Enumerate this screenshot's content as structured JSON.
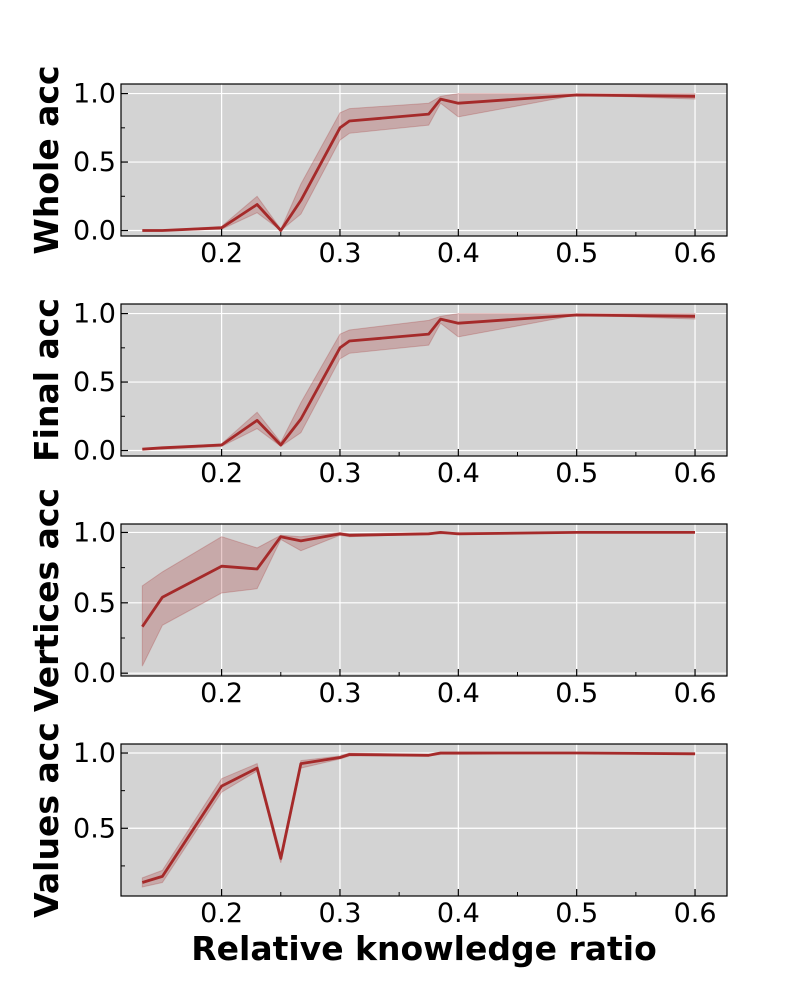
{
  "figure": {
    "xlabel": "Relative knowledge ratio"
  },
  "style": {
    "panel_bg": "#d3d3d3",
    "grid_color": "#ffffff",
    "line_color": "#a52a2a",
    "band_color": "#a52a2a"
  },
  "chart_data": [
    {
      "type": "line",
      "ylabel": "Whole acc",
      "xlim": [
        0.115,
        0.627
      ],
      "ylim": [
        -0.04,
        1.07
      ],
      "xticks": [
        "0.2",
        "0.3",
        "0.4",
        "0.5",
        "0.6"
      ],
      "xtick_values": [
        0.2,
        0.3,
        0.4,
        0.5,
        0.6
      ],
      "xminor_values": [
        0.25,
        0.35,
        0.45,
        0.55
      ],
      "yticks": [
        "0.0",
        "0.5",
        "1.0"
      ],
      "ytick_values": [
        0.0,
        0.5,
        1.0
      ],
      "yminor_values": [
        0.25,
        0.75
      ],
      "grid": true,
      "series": [
        {
          "x": [
            0.133,
            0.15,
            0.2,
            0.23,
            0.25,
            0.267,
            0.3,
            0.308,
            0.375,
            0.385,
            0.4,
            0.5,
            0.6
          ],
          "y": [
            0.0,
            0.0,
            0.02,
            0.19,
            0.0,
            0.22,
            0.75,
            0.8,
            0.85,
            0.96,
            0.93,
            0.99,
            0.98
          ],
          "lower": [
            0.0,
            0.0,
            0.01,
            0.13,
            0.0,
            0.12,
            0.66,
            0.71,
            0.77,
            0.93,
            0.83,
            0.99,
            0.96
          ],
          "upper": [
            0.0,
            0.0,
            0.03,
            0.25,
            0.01,
            0.34,
            0.86,
            0.89,
            0.93,
            0.98,
            1.0,
            1.0,
            1.0
          ]
        }
      ]
    },
    {
      "type": "line",
      "ylabel": "Final acc",
      "xlim": [
        0.115,
        0.627
      ],
      "ylim": [
        -0.04,
        1.07
      ],
      "xticks": [
        "0.2",
        "0.3",
        "0.4",
        "0.5",
        "0.6"
      ],
      "xtick_values": [
        0.2,
        0.3,
        0.4,
        0.5,
        0.6
      ],
      "xminor_values": [
        0.25,
        0.35,
        0.45,
        0.55
      ],
      "yticks": [
        "0.0",
        "0.5",
        "1.0"
      ],
      "ytick_values": [
        0.0,
        0.5,
        1.0
      ],
      "yminor_values": [
        0.25,
        0.75
      ],
      "grid": true,
      "series": [
        {
          "x": [
            0.133,
            0.15,
            0.2,
            0.23,
            0.25,
            0.267,
            0.3,
            0.308,
            0.375,
            0.385,
            0.4,
            0.5,
            0.6
          ],
          "y": [
            0.01,
            0.02,
            0.04,
            0.22,
            0.04,
            0.23,
            0.75,
            0.8,
            0.85,
            0.96,
            0.93,
            0.99,
            0.98
          ],
          "lower": [
            0.01,
            0.01,
            0.03,
            0.16,
            0.03,
            0.13,
            0.67,
            0.71,
            0.77,
            0.93,
            0.83,
            0.99,
            0.96
          ],
          "upper": [
            0.01,
            0.02,
            0.05,
            0.28,
            0.06,
            0.35,
            0.85,
            0.88,
            0.95,
            0.98,
            1.0,
            1.0,
            1.0
          ]
        }
      ]
    },
    {
      "type": "line",
      "ylabel": "Vertices acc",
      "xlim": [
        0.115,
        0.627
      ],
      "ylim": [
        -0.02,
        1.06
      ],
      "xticks": [
        "0.2",
        "0.3",
        "0.4",
        "0.5",
        "0.6"
      ],
      "xtick_values": [
        0.2,
        0.3,
        0.4,
        0.5,
        0.6
      ],
      "xminor_values": [
        0.25,
        0.35,
        0.45,
        0.55
      ],
      "yticks": [
        "0.0",
        "0.5",
        "1.0"
      ],
      "ytick_values": [
        0.0,
        0.5,
        1.0
      ],
      "yminor_values": [
        0.25,
        0.75
      ],
      "grid": true,
      "series": [
        {
          "x": [
            0.133,
            0.15,
            0.2,
            0.23,
            0.25,
            0.267,
            0.3,
            0.308,
            0.375,
            0.385,
            0.4,
            0.5,
            0.6
          ],
          "y": [
            0.33,
            0.54,
            0.76,
            0.74,
            0.97,
            0.94,
            0.99,
            0.98,
            0.99,
            1.0,
            0.99,
            1.0,
            1.0
          ],
          "lower": [
            0.05,
            0.34,
            0.57,
            0.6,
            0.95,
            0.87,
            0.98,
            0.97,
            0.99,
            0.99,
            0.99,
            1.0,
            1.0
          ],
          "upper": [
            0.62,
            0.72,
            0.97,
            0.89,
            0.98,
            0.97,
            1.0,
            0.99,
            1.0,
            1.0,
            1.0,
            1.0,
            1.0
          ]
        }
      ]
    },
    {
      "type": "line",
      "ylabel": "Values acc",
      "xlim": [
        0.115,
        0.627
      ],
      "ylim": [
        0.05,
        1.06
      ],
      "xticks": [
        "0.2",
        "0.3",
        "0.4",
        "0.5",
        "0.6"
      ],
      "xtick_values": [
        0.2,
        0.3,
        0.4,
        0.5,
        0.6
      ],
      "xminor_values": [
        0.25,
        0.35,
        0.45,
        0.55
      ],
      "yticks": [
        "0.5",
        "1.0"
      ],
      "ytick_values": [
        0.5,
        1.0
      ],
      "yminor_values": [
        0.25,
        0.75
      ],
      "grid": true,
      "series": [
        {
          "x": [
            0.133,
            0.15,
            0.2,
            0.23,
            0.25,
            0.267,
            0.3,
            0.308,
            0.375,
            0.385,
            0.4,
            0.5,
            0.6
          ],
          "y": [
            0.14,
            0.18,
            0.78,
            0.9,
            0.3,
            0.93,
            0.97,
            0.99,
            0.985,
            1.0,
            1.0,
            1.0,
            0.995
          ],
          "lower": [
            0.11,
            0.14,
            0.74,
            0.88,
            0.27,
            0.9,
            0.96,
            0.98,
            0.98,
            0.99,
            0.99,
            1.0,
            0.99
          ],
          "upper": [
            0.17,
            0.22,
            0.83,
            0.93,
            0.33,
            0.95,
            0.98,
            1.0,
            0.99,
            1.0,
            1.0,
            1.0,
            1.0
          ]
        }
      ]
    }
  ]
}
